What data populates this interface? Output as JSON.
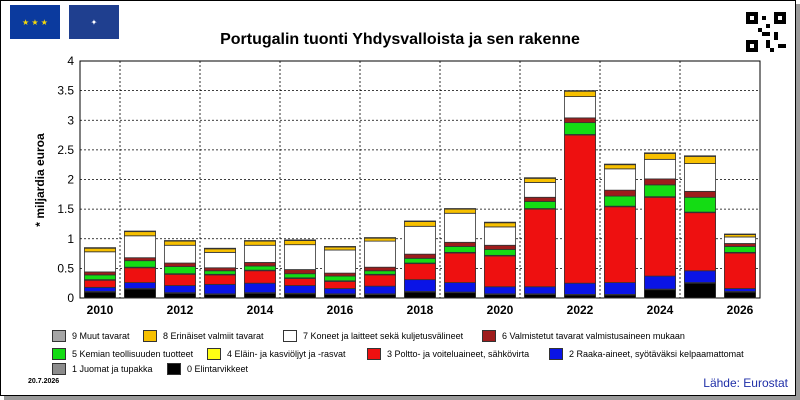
{
  "title": "Portugalin tuonti Yhdysvalloista ja sen rakenne",
  "date": "20.7.2026",
  "source": "Lähde: Eurostat",
  "colors": {
    "s0": "#000000",
    "s1": "#8c8c8c",
    "s2": "#0a14e6",
    "s3": "#ee1010",
    "s4": "#ffff14",
    "s5": "#14dc14",
    "s6": "#9e1c1c",
    "s7": "#ffffff",
    "s8": "#f7c000",
    "s9": "#a5a5a5",
    "grid": "#000000",
    "axis": "#000000"
  },
  "legend": [
    {
      "key": "s9",
      "label": "9 Muut tavarat"
    },
    {
      "key": "s8",
      "label": "8 Erinäiset valmiit tavarat"
    },
    {
      "key": "s7",
      "label": "7 Koneet ja laitteet sekä kuljetusvälineet"
    },
    {
      "key": "s6",
      "label": "6 Valmistetut tavarat valmistusaineen mukaan"
    },
    {
      "key": "s5",
      "label": "5 Kemian teollisuuden tuotteet"
    },
    {
      "key": "s4",
      "label": "4 Eläin- ja kasviöljyt ja -rasvat"
    },
    {
      "key": "s3",
      "label": "3 Poltto- ja voiteluaineet, sähkövirta"
    },
    {
      "key": "s2",
      "label": "2 Raaka-aineet, syötäväksi kelpaamattomat"
    },
    {
      "key": "s1",
      "label": "1 Juomat ja tupakka"
    },
    {
      "key": "s0",
      "label": "0 Elintarvikkeet"
    }
  ],
  "chart_data": {
    "type": "bar",
    "stacked": true,
    "ylabel": "* miljardia euroa",
    "xlabel": "",
    "ylim": [
      0,
      4
    ],
    "yticks": [
      "0",
      "0.5",
      "1",
      "1.5",
      "2",
      "2.5",
      "3",
      "3.5",
      "4"
    ],
    "xtick_labels": [
      "2010",
      "2012",
      "2014",
      "2016",
      "2018",
      "2020",
      "2022",
      "2024",
      "2026"
    ],
    "categories": [
      "2010",
      "2011",
      "2012",
      "2013",
      "2014",
      "2015",
      "2016",
      "2017",
      "2018",
      "2019",
      "2020",
      "2021",
      "2022",
      "2023",
      "2024",
      "2025",
      "2026"
    ],
    "series": [
      {
        "key": "s0",
        "name": "0 Elintarvikkeet",
        "values": [
          0.1,
          0.15,
          0.08,
          0.06,
          0.08,
          0.07,
          0.06,
          0.06,
          0.1,
          0.09,
          0.06,
          0.06,
          0.05,
          0.05,
          0.14,
          0.25,
          0.1
        ]
      },
      {
        "key": "s1",
        "name": "1 Juomat ja tupakka",
        "values": [
          0.01,
          0.01,
          0.01,
          0.01,
          0.01,
          0.01,
          0.01,
          0.01,
          0.01,
          0.01,
          0.01,
          0.01,
          0.01,
          0.01,
          0.01,
          0.01,
          0.01
        ]
      },
      {
        "key": "s2",
        "name": "2 Raaka-aineet, syötäväksi kelpaamattomat",
        "values": [
          0.07,
          0.1,
          0.12,
          0.16,
          0.16,
          0.13,
          0.09,
          0.13,
          0.2,
          0.16,
          0.12,
          0.12,
          0.19,
          0.2,
          0.22,
          0.2,
          0.05
        ]
      },
      {
        "key": "s3",
        "name": "3 Poltto- ja voiteluaineet, sähkövirta",
        "values": [
          0.12,
          0.25,
          0.19,
          0.16,
          0.21,
          0.12,
          0.12,
          0.19,
          0.27,
          0.5,
          0.52,
          1.31,
          2.5,
          1.28,
          1.33,
          0.98,
          0.6
        ]
      },
      {
        "key": "s4",
        "name": "4 Eläin- ja kasviöljyt ja -rasvat",
        "values": [
          0.01,
          0.01,
          0.01,
          0.01,
          0.01,
          0.01,
          0.01,
          0.01,
          0.01,
          0.01,
          0.01,
          0.01,
          0.01,
          0.01,
          0.01,
          0.01,
          0.01
        ]
      },
      {
        "key": "s5",
        "name": "5 Kemian teollisuuden tuotteet",
        "values": [
          0.08,
          0.11,
          0.12,
          0.06,
          0.07,
          0.07,
          0.08,
          0.06,
          0.08,
          0.1,
          0.1,
          0.12,
          0.2,
          0.17,
          0.2,
          0.25,
          0.1
        ]
      },
      {
        "key": "s6",
        "name": "6 Valmistetut tavarat valmistusaineen mukaan",
        "values": [
          0.05,
          0.05,
          0.06,
          0.05,
          0.06,
          0.07,
          0.05,
          0.06,
          0.07,
          0.07,
          0.07,
          0.07,
          0.08,
          0.1,
          0.1,
          0.1,
          0.05
        ]
      },
      {
        "key": "s7",
        "name": "7 Koneet ja laitteet sekä kuljetusvälineet",
        "values": [
          0.34,
          0.37,
          0.3,
          0.26,
          0.29,
          0.42,
          0.39,
          0.44,
          0.47,
          0.49,
          0.31,
          0.25,
          0.36,
          0.36,
          0.33,
          0.47,
          0.11
        ]
      },
      {
        "key": "s8",
        "name": "8 Erinäiset valmiit tavarat",
        "values": [
          0.06,
          0.07,
          0.07,
          0.06,
          0.07,
          0.07,
          0.05,
          0.05,
          0.08,
          0.07,
          0.07,
          0.07,
          0.09,
          0.07,
          0.1,
          0.12,
          0.04
        ]
      },
      {
        "key": "s9",
        "name": "9 Muut tavarat",
        "values": [
          0.01,
          0.01,
          0.01,
          0.01,
          0.01,
          0.01,
          0.01,
          0.01,
          0.01,
          0.01,
          0.01,
          0.01,
          0.01,
          0.01,
          0.01,
          0.01,
          0.01
        ]
      }
    ]
  }
}
